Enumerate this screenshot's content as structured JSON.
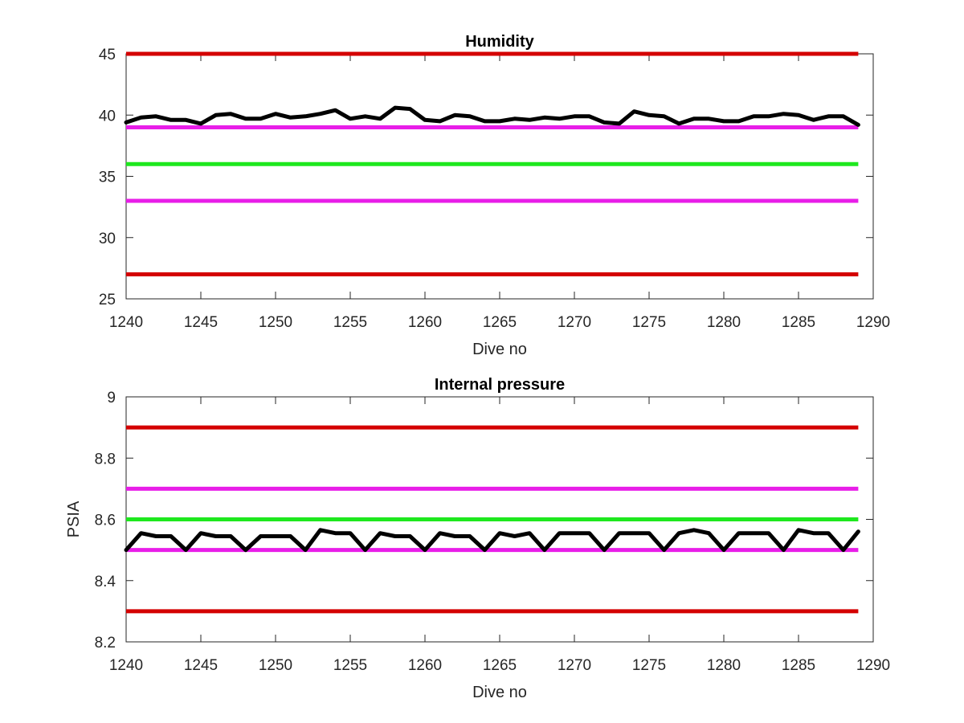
{
  "chart_data": [
    {
      "type": "line",
      "title": "Humidity",
      "xlabel": "Dive no",
      "ylabel": "",
      "xlim": [
        1240,
        1290
      ],
      "ylim": [
        25,
        45
      ],
      "xticks": [
        1240,
        1245,
        1250,
        1255,
        1260,
        1265,
        1270,
        1275,
        1280,
        1285,
        1290
      ],
      "yticks": [
        25,
        30,
        35,
        40,
        45
      ],
      "grid": false,
      "reference_lines": [
        {
          "y": 45,
          "color": "#d40000"
        },
        {
          "y": 39,
          "color": "#e81ee8"
        },
        {
          "y": 36,
          "color": "#1ee81e"
        },
        {
          "y": 33,
          "color": "#e81ee8"
        },
        {
          "y": 27,
          "color": "#d40000"
        }
      ],
      "series": [
        {
          "color": "#000000",
          "x": [
            1240,
            1241,
            1242,
            1243,
            1244,
            1245,
            1246,
            1247,
            1248,
            1249,
            1250,
            1251,
            1252,
            1253,
            1254,
            1255,
            1256,
            1257,
            1258,
            1259,
            1260,
            1261,
            1262,
            1263,
            1264,
            1265,
            1266,
            1267,
            1268,
            1269,
            1270,
            1271,
            1272,
            1273,
            1274,
            1275,
            1276,
            1277,
            1278,
            1279,
            1280,
            1281,
            1282,
            1283,
            1284,
            1285,
            1286,
            1287,
            1288,
            1289
          ],
          "values": [
            39.4,
            39.8,
            39.9,
            39.6,
            39.6,
            39.3,
            40.0,
            40.1,
            39.7,
            39.7,
            40.1,
            39.8,
            39.9,
            40.1,
            40.4,
            39.7,
            39.9,
            39.7,
            40.6,
            40.5,
            39.6,
            39.5,
            40.0,
            39.9,
            39.5,
            39.5,
            39.7,
            39.6,
            39.8,
            39.7,
            39.9,
            39.9,
            39.4,
            39.3,
            40.3,
            40.0,
            39.9,
            39.3,
            39.7,
            39.7,
            39.5,
            39.5,
            39.9,
            39.9,
            40.1,
            40.0,
            39.6,
            39.9,
            39.9,
            39.2
          ]
        }
      ]
    },
    {
      "type": "line",
      "title": "Internal pressure",
      "xlabel": "Dive no",
      "ylabel": "PSIA",
      "xlim": [
        1240,
        1290
      ],
      "ylim": [
        8.2,
        9.0
      ],
      "xticks": [
        1240,
        1245,
        1250,
        1255,
        1260,
        1265,
        1270,
        1275,
        1280,
        1285,
        1290
      ],
      "yticks": [
        8.2,
        8.4,
        8.6,
        8.8,
        9.0
      ],
      "ytick_labels": [
        "8.2",
        "8.4",
        "8.6",
        "8.8",
        "9"
      ],
      "grid": false,
      "reference_lines": [
        {
          "y": 8.9,
          "color": "#d40000"
        },
        {
          "y": 8.7,
          "color": "#e81ee8"
        },
        {
          "y": 8.6,
          "color": "#1ee81e"
        },
        {
          "y": 8.5,
          "color": "#e81ee8"
        },
        {
          "y": 8.3,
          "color": "#d40000"
        }
      ],
      "series": [
        {
          "color": "#000000",
          "x": [
            1240,
            1241,
            1242,
            1243,
            1244,
            1245,
            1246,
            1247,
            1248,
            1249,
            1250,
            1251,
            1252,
            1253,
            1254,
            1255,
            1256,
            1257,
            1258,
            1259,
            1260,
            1261,
            1262,
            1263,
            1264,
            1265,
            1266,
            1267,
            1268,
            1269,
            1270,
            1271,
            1272,
            1273,
            1274,
            1275,
            1276,
            1277,
            1278,
            1279,
            1280,
            1281,
            1282,
            1283,
            1284,
            1285,
            1286,
            1287,
            1288,
            1289
          ],
          "values": [
            8.5,
            8.555,
            8.545,
            8.545,
            8.5,
            8.555,
            8.545,
            8.545,
            8.5,
            8.545,
            8.545,
            8.545,
            8.5,
            8.565,
            8.555,
            8.555,
            8.5,
            8.555,
            8.545,
            8.545,
            8.5,
            8.555,
            8.545,
            8.545,
            8.5,
            8.555,
            8.545,
            8.555,
            8.5,
            8.555,
            8.555,
            8.555,
            8.5,
            8.555,
            8.555,
            8.555,
            8.5,
            8.555,
            8.565,
            8.555,
            8.5,
            8.555,
            8.555,
            8.555,
            8.5,
            8.565,
            8.555,
            8.555,
            8.5,
            8.56
          ]
        }
      ]
    }
  ]
}
